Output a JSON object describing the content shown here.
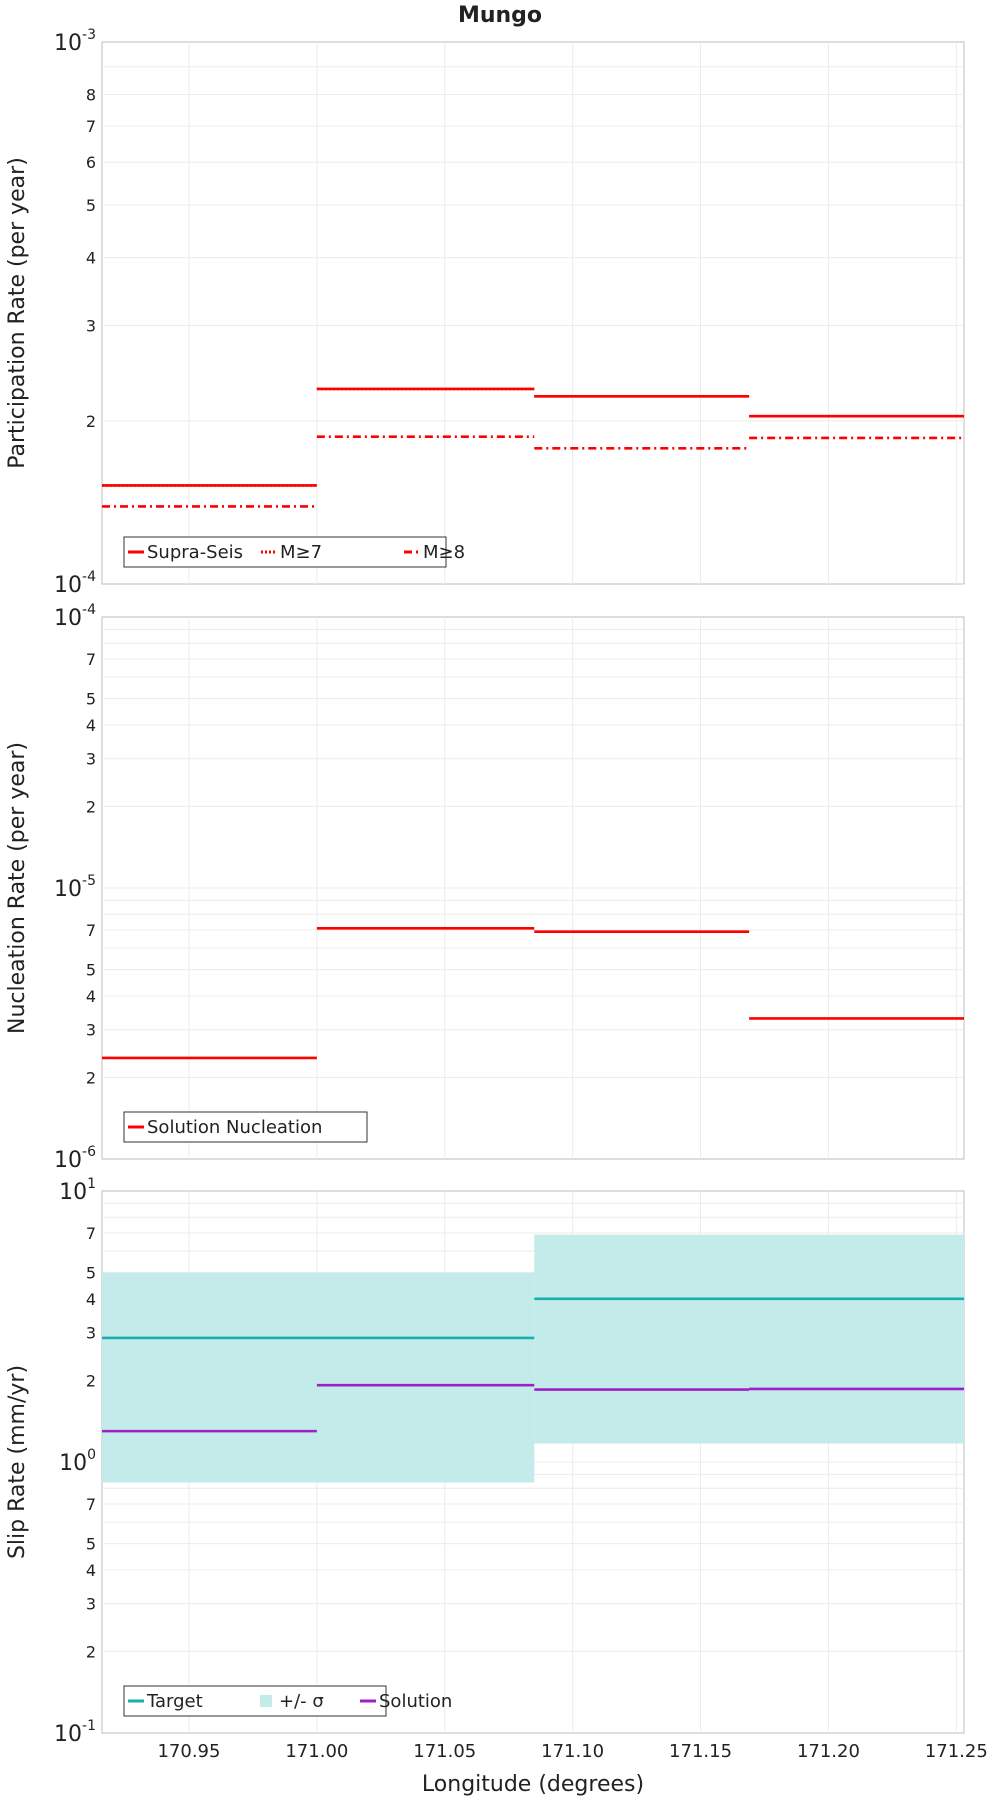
{
  "chart_data": [
    {
      "type": "line",
      "title": "Mungo",
      "ylabel": "Participation Rate (per year)",
      "yscale": "log",
      "ylim": [
        0.0001,
        0.001
      ],
      "xlim": [
        170.916,
        171.253
      ],
      "y_decade_labels": [
        {
          "base": "10",
          "exp": "-3"
        },
        {
          "base": "10",
          "exp": "-4"
        }
      ],
      "y_minor_labels": [
        "8",
        "7",
        "6",
        "5",
        "4",
        "3",
        "2"
      ],
      "legend_position": "bottom-left",
      "series": [
        {
          "name": "Supra-Seis",
          "color": "#ff0000",
          "style": "solid",
          "segments": [
            {
              "x0": 170.916,
              "x1": 171.0,
              "y": 0.000152
            },
            {
              "x0": 171.0,
              "x1": 171.085,
              "y": 0.000229
            },
            {
              "x0": 171.085,
              "x1": 171.169,
              "y": 0.000222
            },
            {
              "x0": 171.169,
              "x1": 171.253,
              "y": 0.000204
            }
          ]
        },
        {
          "name": "M≥7",
          "color": "#ff0000",
          "style": "dotted",
          "segments": [
            {
              "x0": 170.916,
              "x1": 171.0,
              "y": 0.000152
            },
            {
              "x0": 171.0,
              "x1": 171.085,
              "y": 0.000229
            },
            {
              "x0": 171.085,
              "x1": 171.169,
              "y": 0.000222
            },
            {
              "x0": 171.169,
              "x1": 171.253,
              "y": 0.000204
            }
          ]
        },
        {
          "name": "M≥8",
          "color": "#ff0000",
          "style": "dashdot",
          "segments": [
            {
              "x0": 170.916,
              "x1": 171.0,
              "y": 0.000139
            },
            {
              "x0": 171.0,
              "x1": 171.085,
              "y": 0.000187
            },
            {
              "x0": 171.085,
              "x1": 171.169,
              "y": 0.000178
            },
            {
              "x0": 171.169,
              "x1": 171.253,
              "y": 0.000186
            }
          ]
        }
      ]
    },
    {
      "type": "line",
      "ylabel": "Nucleation Rate (per year)",
      "yscale": "log",
      "ylim": [
        1e-06,
        0.0001
      ],
      "xlim": [
        170.916,
        171.253
      ],
      "y_decade_labels": [
        {
          "base": "10",
          "exp": "-4"
        },
        {
          "base": "10",
          "exp": "-5"
        },
        {
          "base": "10",
          "exp": "-6"
        }
      ],
      "y_minor_labels": [
        "7",
        "5",
        "4",
        "3",
        "2",
        "7",
        "5",
        "4",
        "3",
        "2"
      ],
      "legend_position": "bottom-left",
      "series": [
        {
          "name": "Solution Nucleation",
          "color": "#ff0000",
          "style": "solid",
          "segments": [
            {
              "x0": 170.916,
              "x1": 171.0,
              "y": 2.36e-06
            },
            {
              "x0": 171.0,
              "x1": 171.085,
              "y": 7.1e-06
            },
            {
              "x0": 171.085,
              "x1": 171.169,
              "y": 6.9e-06
            },
            {
              "x0": 171.169,
              "x1": 171.253,
              "y": 3.3e-06
            }
          ]
        }
      ]
    },
    {
      "type": "line",
      "ylabel": "Slip Rate (mm/yr)",
      "xlabel": "Longitude (degrees)",
      "yscale": "log",
      "ylim": [
        0.1,
        10
      ],
      "xlim": [
        170.916,
        171.253
      ],
      "x_tick_labels": [
        "170.95",
        "171.00",
        "171.05",
        "171.10",
        "171.15",
        "171.20",
        "171.25"
      ],
      "x_ticks": [
        170.95,
        171.0,
        171.05,
        171.1,
        171.15,
        171.2,
        171.25
      ],
      "y_decade_labels": [
        {
          "base": "10",
          "exp": "1"
        },
        {
          "base": "10",
          "exp": "0"
        },
        {
          "base": "10",
          "exp": "-1"
        }
      ],
      "y_minor_labels": [
        "7",
        "5",
        "4",
        "3",
        "2",
        "7",
        "5",
        "4",
        "3",
        "2"
      ],
      "legend_position": "bottom-left",
      "band": {
        "name": "+/- σ",
        "color": "#c2ebea",
        "segments": [
          {
            "x0": 170.916,
            "x1": 171.085,
            "low": 0.84,
            "high": 5.0
          },
          {
            "x0": 171.085,
            "x1": 171.253,
            "low": 1.17,
            "high": 6.9
          }
        ]
      },
      "series": [
        {
          "name": "Target",
          "color": "#1aaeae",
          "style": "solid",
          "segments": [
            {
              "x0": 170.916,
              "x1": 171.085,
              "y": 2.87
            },
            {
              "x0": 171.085,
              "x1": 171.253,
              "y": 4.0
            }
          ]
        },
        {
          "name": "Solution",
          "color": "#a020c8",
          "style": "solid",
          "segments": [
            {
              "x0": 170.916,
              "x1": 171.0,
              "y": 1.3
            },
            {
              "x0": 171.0,
              "x1": 171.085,
              "y": 1.92
            },
            {
              "x0": 171.085,
              "x1": 171.169,
              "y": 1.85
            },
            {
              "x0": 171.169,
              "x1": 171.253,
              "y": 1.86
            }
          ]
        }
      ]
    }
  ]
}
